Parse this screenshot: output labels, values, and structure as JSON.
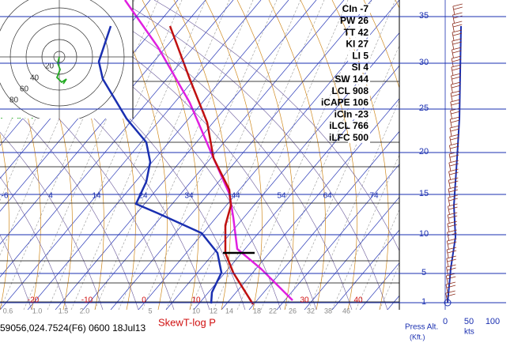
{
  "title": "SkewT-log P",
  "footer": "59056,024.7524(F6) 0600 18Jul13",
  "indices": [
    "CIn -7",
    "PW 26",
    "TT 42",
    "KI 27",
    "LI 5",
    "SI 4",
    "SW 144",
    "LCL 908",
    "iCAPE 106",
    "iCIn -23",
    "iLCL 766",
    "iLFC 500"
  ],
  "altitude_ticks": [
    "35",
    "30",
    "25",
    "20",
    "15",
    "10",
    "5",
    "1"
  ],
  "altitude_label": [
    "Press Alt.",
    "(Kft.)"
  ],
  "wind_ticks": [
    "0",
    "50",
    "100"
  ],
  "wind_unit": "kts",
  "hodograph": {
    "label": "wind (kts)",
    "rings": [
      "20",
      "40",
      "60",
      "80"
    ]
  },
  "temperature_labels": [
    "-20",
    "-10",
    "0",
    "10",
    "30",
    "40"
  ],
  "theta_labels": [
    "-6",
    "4",
    "14",
    "24",
    "34",
    "44",
    "54",
    "64",
    "74"
  ],
  "mixing_ratio_labels": [
    "0.6",
    "1.0",
    "1.5",
    "2.0",
    "5",
    "10",
    "12",
    "14",
    "18",
    "22",
    "26",
    "32",
    "38",
    "46"
  ]
}
